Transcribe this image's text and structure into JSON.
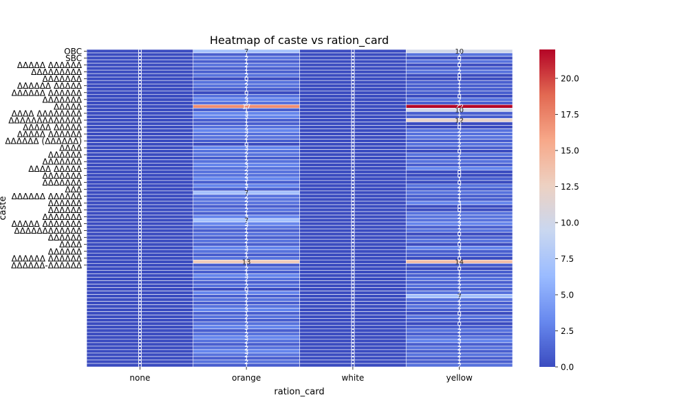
{
  "chart_data": {
    "type": "heatmap",
    "title": "Heatmap of caste vs ration_card",
    "xlabel": "ration_card",
    "ylabel": "caste",
    "x_categories": [
      "none",
      "orange",
      "white",
      "yellow"
    ],
    "y_tick_labels": [
      "OBC",
      "SBC",
      "ᐃᐃᐃᐃᐃ ᐃᐃᐃᐃᐃᐃ",
      "ᐃᐃᐃᐃᐃᐃᐃᐃᐃ",
      "ᐃᐃᐃᐃᐃᐃᐃ",
      "ᐃᐃᐃᐃᐃᐃ ᐃᐃᐃᐃᐃ",
      "ᐃᐃᐃᐃᐃᐃ ᐃᐃᐃᐃᐃᐃ",
      "ᐃᐃᐃᐃᐃᐃᐃ",
      "ᐃᐃᐃᐃᐃ",
      "ᐃᐃᐃᐃ  ᐃᐃᐃᐃᐃᐃᐃᐃ",
      "ᐃᐃᐃᐃᐃᐃᐃᐃᐃᐃᐃᐃᐃ",
      "ᐃᐃᐃᐃᐃ ᐃᐃᐃᐃᐃ",
      "ᐃᐃᐃᐃᐃ ᐃᐃᐃᐃᐃᐃ",
      "ᐃᐃᐃᐃᐃᐃ (ᐃᐃᐃᐃᐃᐃ)",
      "ᐃᐃᐃᐃ",
      "ᐃᐃᐃᐃᐃᐃ",
      "ᐃᐃᐃᐃᐃᐃᐃ",
      "ᐃᐃᐃᐃ ᐃᐃᐃᐃᐃ",
      "ᐃᐃᐃᐃᐃᐃᐃ",
      "ᐃᐃᐃᐃᐃᐃᐃ",
      "ᐃᐃᐃ",
      "ᐃᐃᐃᐃᐃᐃ ᐃᐃᐃᐃᐃᐃ",
      "ᐃᐃᐃᐃᐃᐃ",
      "ᐃᐃᐃᐃᐃᐃ",
      "ᐃᐃᐃᐃᐃᐃᐃ",
      "ᐃᐃᐃᐃᐃ ᐃᐃᐃᐃᐃᐃᐃ",
      "ᐃᐃᐃᐃᐃᐃᐃᐃᐃᐃᐃᐃ",
      "ᐃᐃᐃᐃᐃᐃ",
      "ᐃᐃᐃᐃ",
      "ᐃᐃᐃᐃᐃᐃ",
      "ᐃᐃᐃᐃᐃᐃ ᐃᐃᐃᐃᐃᐃ",
      "ᐃᐃᐃᐃᐃᐃ-ᐃᐃᐃᐃᐃᐃ"
    ],
    "values": [
      [
        0,
        7,
        0,
        10
      ],
      [
        0,
        1,
        0,
        2
      ],
      [
        0,
        2,
        0,
        0
      ],
      [
        0,
        1,
        0,
        2
      ],
      [
        0,
        2,
        0,
        0
      ],
      [
        0,
        1,
        0,
        1
      ],
      [
        0,
        1,
        0,
        2
      ],
      [
        0,
        2,
        0,
        0
      ],
      [
        0,
        0,
        0,
        0
      ],
      [
        0,
        2,
        0,
        1
      ],
      [
        0,
        2,
        0,
        1
      ],
      [
        0,
        1,
        0,
        1
      ],
      [
        0,
        0,
        0,
        1
      ],
      [
        0,
        2,
        0,
        0
      ],
      [
        0,
        3,
        0,
        2
      ],
      [
        0,
        2,
        0,
        1
      ],
      [
        0,
        17,
        0,
        22
      ],
      [
        0,
        1,
        0,
        10
      ],
      [
        0,
        3,
        0,
        1
      ],
      [
        0,
        3,
        0,
        1
      ],
      [
        0,
        1,
        0,
        12
      ],
      [
        0,
        1,
        0,
        0
      ],
      [
        0,
        2,
        0,
        0
      ],
      [
        0,
        3,
        0,
        2
      ],
      [
        0,
        2,
        0,
        2
      ],
      [
        0,
        2,
        0,
        2
      ],
      [
        0,
        1,
        0,
        1
      ],
      [
        0,
        0,
        0,
        2
      ],
      [
        0,
        3,
        0,
        1
      ],
      [
        0,
        2,
        0,
        0
      ],
      [
        0,
        2,
        0,
        2
      ],
      [
        0,
        1,
        0,
        1
      ],
      [
        0,
        2,
        0,
        2
      ],
      [
        0,
        3,
        0,
        1
      ],
      [
        0,
        2,
        0,
        3
      ],
      [
        0,
        2,
        0,
        0
      ],
      [
        0,
        2,
        0,
        0
      ],
      [
        0,
        3,
        0,
        1
      ],
      [
        0,
        1,
        0,
        0
      ],
      [
        0,
        3,
        0,
        2
      ],
      [
        0,
        1,
        0,
        1
      ],
      [
        0,
        7,
        0,
        2
      ],
      [
        0,
        2,
        0,
        1
      ],
      [
        0,
        2,
        0,
        1
      ],
      [
        0,
        2,
        0,
        3
      ],
      [
        0,
        1,
        0,
        0
      ],
      [
        0,
        2,
        0,
        0
      ],
      [
        0,
        1,
        0,
        2
      ],
      [
        0,
        3,
        0,
        2
      ],
      [
        0,
        7,
        0,
        2
      ],
      [
        0,
        3,
        0,
        3
      ],
      [
        0,
        2,
        0,
        1
      ],
      [
        0,
        1,
        0,
        2
      ],
      [
        0,
        2,
        0,
        0
      ],
      [
        0,
        1,
        0,
        1
      ],
      [
        0,
        2,
        0,
        2
      ],
      [
        0,
        1,
        0,
        0
      ],
      [
        0,
        3,
        0,
        3
      ],
      [
        0,
        2,
        0,
        1
      ],
      [
        0,
        1,
        0,
        1
      ],
      [
        0,
        2,
        0,
        0
      ],
      [
        0,
        13,
        0,
        14
      ],
      [
        0,
        1,
        0,
        1
      ],
      [
        0,
        2,
        0,
        0
      ],
      [
        0,
        1,
        0,
        1
      ],
      [
        0,
        3,
        0,
        1
      ],
      [
        0,
        2,
        0,
        2
      ],
      [
        0,
        1,
        0,
        1
      ],
      [
        0,
        2,
        0,
        2
      ],
      [
        0,
        0,
        0,
        1
      ],
      [
        0,
        3,
        0,
        2
      ],
      [
        0,
        1,
        0,
        7
      ],
      [
        0,
        2,
        0,
        2
      ],
      [
        0,
        1,
        0,
        1
      ],
      [
        0,
        2,
        0,
        2
      ],
      [
        0,
        3,
        0,
        1
      ],
      [
        0,
        1,
        0,
        0
      ],
      [
        0,
        2,
        0,
        2
      ],
      [
        0,
        1,
        0,
        1
      ],
      [
        0,
        2,
        0,
        0
      ],
      [
        0,
        3,
        0,
        1
      ],
      [
        0,
        1,
        0,
        2
      ],
      [
        0,
        2,
        0,
        1
      ],
      [
        0,
        3,
        0,
        2
      ],
      [
        0,
        2,
        0,
        3
      ],
      [
        0,
        1,
        0,
        1
      ],
      [
        0,
        2,
        0,
        2
      ],
      [
        0,
        3,
        0,
        1
      ],
      [
        0,
        2,
        0,
        2
      ],
      [
        0,
        1,
        0,
        1
      ],
      [
        0,
        2,
        0,
        1
      ],
      [
        0,
        1,
        0,
        2
      ]
    ],
    "colorbar": {
      "min": 0,
      "max": 22,
      "ticks": [
        0.0,
        2.5,
        5.0,
        7.5,
        10.0,
        12.5,
        15.0,
        17.5,
        20.0
      ],
      "tick_labels": [
        "0.0",
        "2.5",
        "5.0",
        "7.5",
        "10.0",
        "12.5",
        "15.0",
        "17.5",
        "20.0"
      ],
      "colormap": "coolwarm",
      "colormap_stops": [
        "#3b4cc0",
        "#6788ee",
        "#9abbff",
        "#c9d7f0",
        "#edd1c2",
        "#f7a889",
        "#e26952",
        "#b40426"
      ]
    },
    "grid_line_color": "#ffffff",
    "annotations": true
  }
}
